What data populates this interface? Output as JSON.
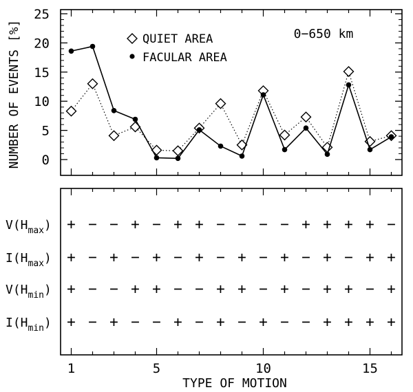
{
  "chart_data": [
    {
      "type": "line",
      "ylabel": "NUMBER OF EVENTS [%]",
      "ylim": [
        -3,
        25
      ],
      "xlim": [
        0.5,
        16.5
      ],
      "annotation": "0−650 km",
      "y_ticks": [
        0,
        5,
        10,
        15,
        20,
        25
      ],
      "legend_position": "top-left",
      "categories": [
        1,
        2,
        3,
        4,
        5,
        6,
        7,
        8,
        9,
        10,
        11,
        12,
        13,
        14,
        15,
        16
      ],
      "series": [
        {
          "name": "QUIET AREA",
          "marker": "open-diamond",
          "line": "dotted",
          "values": [
            8.3,
            13.0,
            4.1,
            5.6,
            1.6,
            1.5,
            5.4,
            9.6,
            2.5,
            11.8,
            4.2,
            7.3,
            2.1,
            15.1,
            3.1,
            4.1
          ]
        },
        {
          "name": "FACULAR AREA",
          "marker": "filled-circle",
          "line": "solid",
          "values": [
            18.6,
            19.4,
            8.4,
            6.9,
            0.3,
            0.2,
            5.1,
            2.3,
            0.6,
            11.1,
            1.7,
            5.4,
            0.9,
            12.8,
            1.7,
            3.9
          ]
        }
      ]
    },
    {
      "type": "table",
      "xlabel": "TYPE OF MOTION",
      "x_ticks": [
        1,
        5,
        10,
        15
      ],
      "rows": [
        {
          "label_main": "V(H",
          "label_sub": "max",
          "label_end": ")",
          "signs": [
            "+",
            "−",
            "−",
            "+",
            "−",
            "+",
            "+",
            "−",
            "−",
            "−",
            "−",
            "+",
            "+",
            "+",
            "+",
            "−"
          ]
        },
        {
          "label_main": "I(H",
          "label_sub": "max",
          "label_end": ")",
          "signs": [
            "+",
            "−",
            "+",
            "−",
            "+",
            "−",
            "+",
            "−",
            "+",
            "−",
            "+",
            "−",
            "+",
            "−",
            "+",
            "+"
          ]
        },
        {
          "label_main": "V(H",
          "label_sub": "min",
          "label_end": ")",
          "signs": [
            "+",
            "−",
            "−",
            "+",
            "+",
            "−",
            "−",
            "+",
            "+",
            "−",
            "+",
            "−",
            "+",
            "+",
            "−",
            "+"
          ]
        },
        {
          "label_main": "I(H",
          "label_sub": "min",
          "label_end": ")",
          "signs": [
            "+",
            "−",
            "+",
            "−",
            "−",
            "+",
            "−",
            "+",
            "−",
            "+",
            "−",
            "−",
            "+",
            "+",
            "+",
            "+"
          ]
        }
      ]
    }
  ]
}
